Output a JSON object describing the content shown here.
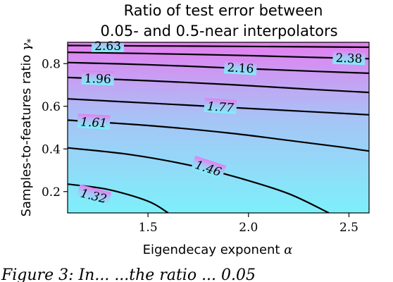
{
  "chart_data": {
    "type": "contour",
    "title_lines": [
      "Ratio of test error between",
      "0.05- and 0.5-near interpolators"
    ],
    "xlabel": "Eigendecay exponent",
    "xlabel_symbol": "α",
    "ylabel": "Samples-to-features ratio",
    "ylabel_symbol": "γ",
    "ylabel_subscript": "*",
    "xlim": [
      1.1,
      2.6
    ],
    "ylim": [
      0.1,
      0.9
    ],
    "x_ticks": [
      1.5,
      2.0,
      2.5
    ],
    "x_tick_labels": [
      "1.5",
      "2.0",
      "2.5"
    ],
    "y_ticks": [
      0.2,
      0.4,
      0.6,
      0.8
    ],
    "y_tick_labels": [
      "0.2",
      "0.4",
      "0.6",
      "0.8"
    ],
    "colormap": {
      "low": "#7df0fa",
      "mid": "#a6c4f6",
      "high": "#e47ef0"
    },
    "contours": [
      {
        "level": "1.32",
        "points": [
          [
            1.1,
            0.235
          ],
          [
            1.3,
            0.21
          ],
          [
            1.5,
            0.155
          ],
          [
            1.6,
            0.1
          ]
        ]
      },
      {
        "level": "1.46",
        "points": [
          [
            1.1,
            0.405
          ],
          [
            1.4,
            0.375
          ],
          [
            1.7,
            0.325
          ],
          [
            1.95,
            0.265
          ],
          [
            2.2,
            0.19
          ],
          [
            2.4,
            0.1
          ]
        ]
      },
      {
        "level": "1.61",
        "points": [
          [
            1.1,
            0.535
          ],
          [
            1.5,
            0.51
          ],
          [
            1.9,
            0.475
          ],
          [
            2.2,
            0.44
          ],
          [
            2.45,
            0.41
          ],
          [
            2.6,
            0.39
          ]
        ]
      },
      {
        "level": "1.77",
        "points": [
          [
            1.1,
            0.635
          ],
          [
            1.5,
            0.615
          ],
          [
            1.9,
            0.595
          ],
          [
            2.3,
            0.575
          ],
          [
            2.6,
            0.56
          ]
        ]
      },
      {
        "level": "1.96",
        "points": [
          [
            1.1,
            0.735
          ],
          [
            1.5,
            0.72
          ],
          [
            1.9,
            0.702
          ],
          [
            2.3,
            0.68
          ],
          [
            2.6,
            0.665
          ]
        ]
      },
      {
        "level": "2.16",
        "points": [
          [
            1.1,
            0.805
          ],
          [
            1.5,
            0.795
          ],
          [
            1.9,
            0.78
          ],
          [
            2.3,
            0.765
          ],
          [
            2.6,
            0.755
          ]
        ]
      },
      {
        "level": "2.38",
        "points": [
          [
            1.1,
            0.853
          ],
          [
            1.5,
            0.847
          ],
          [
            1.9,
            0.84
          ],
          [
            2.3,
            0.83
          ],
          [
            2.6,
            0.823
          ]
        ]
      },
      {
        "level": "2.63",
        "points": [
          [
            1.1,
            0.885
          ],
          [
            1.5,
            0.883
          ],
          [
            1.9,
            0.881
          ],
          [
            2.3,
            0.879
          ],
          [
            2.6,
            0.877
          ]
        ]
      }
    ],
    "contour_labels": [
      {
        "text": "1.32",
        "x": 1.23,
        "y": 0.18,
        "angle": 14
      },
      {
        "text": "1.46",
        "x": 1.8,
        "y": 0.31,
        "angle": 18
      },
      {
        "text": "1.61",
        "x": 1.23,
        "y": 0.525,
        "angle": 3
      },
      {
        "text": "1.77",
        "x": 1.86,
        "y": 0.598,
        "angle": 4
      },
      {
        "text": "1.96",
        "x": 1.25,
        "y": 0.73,
        "angle": 2
      },
      {
        "text": "2.16",
        "x": 1.96,
        "y": 0.78,
        "angle": 3
      },
      {
        "text": "2.38",
        "x": 2.5,
        "y": 0.826,
        "angle": 2
      },
      {
        "text": "2.63",
        "x": 1.3,
        "y": 0.884,
        "angle": 0
      }
    ]
  },
  "caption_fragment": "Figure 3: In... ...the ratio ... 0.05"
}
